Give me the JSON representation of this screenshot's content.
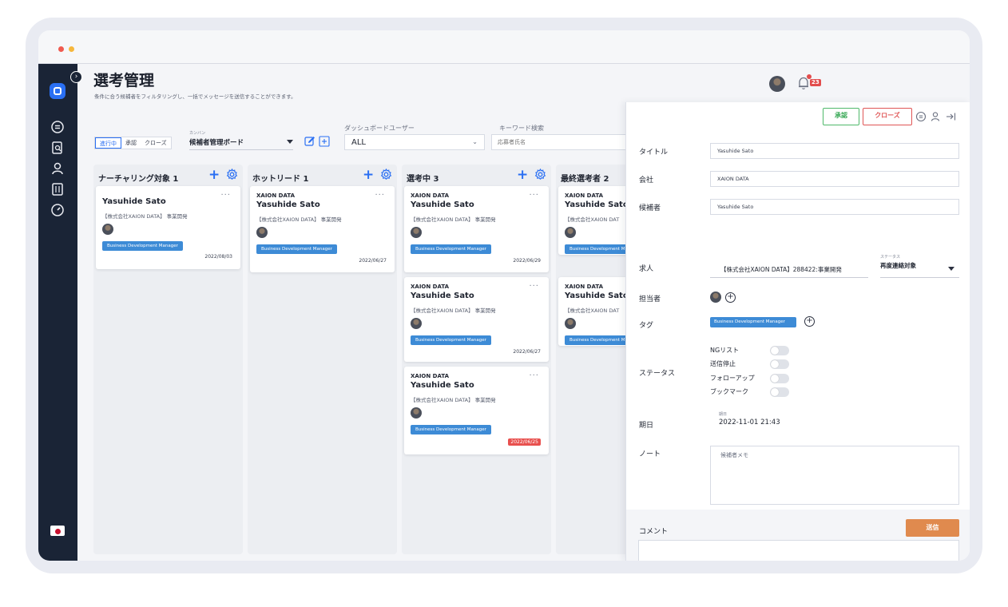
{
  "header": {
    "title": "選考管理",
    "subtitle": "条件に合う候補者をフィルタリングし、一括でメッセージを送信することができます。",
    "notification_count": "23"
  },
  "filters": {
    "tabs": [
      "進行中",
      "承認",
      "クローズ"
    ],
    "kanban_label": "カンバン",
    "kanban_value": "候補者管理ボード",
    "dashboard_label": "ダッシュボードユーザー",
    "dashboard_value": "ALL",
    "keyword_label": "キーワード検索",
    "keyword_placeholder": "応募者氏名"
  },
  "columns": [
    {
      "title": "ナーチャリング対象 1",
      "cards": [
        {
          "company": "",
          "name": "Yasuhide Sato",
          "job": "【株式会社XAION DATA】 事業開発",
          "tag": "Business Development Manager",
          "date": "2022/08/03",
          "overdue": false
        }
      ]
    },
    {
      "title": "ホットリード 1",
      "cards": [
        {
          "company": "XAION DATA",
          "name": "Yasuhide Sato",
          "job": "【株式会社XAION DATA】 事業開発",
          "tag": "Business Development Manager",
          "date": "2022/06/27",
          "overdue": false
        }
      ]
    },
    {
      "title": "選考中 3",
      "cards": [
        {
          "company": "XAION DATA",
          "name": "Yasuhide Sato",
          "job": "【株式会社XAION DATA】 事業開発",
          "tag": "Business Development Manager",
          "date": "2022/06/29",
          "overdue": false
        },
        {
          "company": "XAION DATA",
          "name": "Yasuhide Sato",
          "job": "【株式会社XAION DATA】 事業開発",
          "tag": "Business Development Manager",
          "date": "2022/06/27",
          "overdue": false
        },
        {
          "company": "XAION DATA",
          "name": "Yasuhide Sato",
          "job": "【株式会社XAION DATA】 事業開発",
          "tag": "Business Development Manager",
          "date": "2022/06/25",
          "overdue": true
        }
      ]
    },
    {
      "title": "最終選考者 2",
      "cards": [
        {
          "company": "XAION DATA",
          "name": "Yasuhide Sato",
          "job": "【株式会社XAION DAT",
          "tag": "Business Development M",
          "date": "",
          "overdue": false
        },
        {
          "company": "XAION DATA",
          "name": "Yasuhide Sato",
          "job": "【株式会社XAION DAT",
          "tag": "Business Development M",
          "date": "",
          "overdue": false
        }
      ]
    }
  ],
  "panel": {
    "approve_label": "承認",
    "close_label": "クローズ",
    "title_label": "タイトル",
    "title_value": "Yasuhide Sato",
    "company_label": "会社",
    "company_value": "XAION DATA",
    "candidate_label": "候補者",
    "candidate_value": "Yasuhide Sato",
    "job_label": "求人",
    "job_value": "【株式会社XAION DATA】288422:事業開発",
    "status_mini_label": "ステータス",
    "status_value": "再度連絡対象",
    "assignee_label": "担当者",
    "tag_label": "タグ",
    "tag_value": "Business Development Manager",
    "status_label": "ステータス",
    "toggles": [
      {
        "label": "NGリスト",
        "on": false
      },
      {
        "label": "送信停止",
        "on": false
      },
      {
        "label": "フォローアップ",
        "on": false
      },
      {
        "label": "ブックマーク",
        "on": false
      }
    ],
    "due_label": "期日",
    "due_mini_label": "期日",
    "due_value": "2022-11-01 21:43",
    "note_label": "ノート",
    "note_placeholder": "候補者メモ",
    "comment_label": "コメント",
    "send_label": "送信"
  },
  "colors": {
    "accent": "#2a6ff3",
    "sidebar": "#1a2436",
    "tag": "#3d8bd6",
    "approve": "#3aa957",
    "close": "#e05555",
    "send": "#e08a4e",
    "overdue": "#e8504e"
  }
}
